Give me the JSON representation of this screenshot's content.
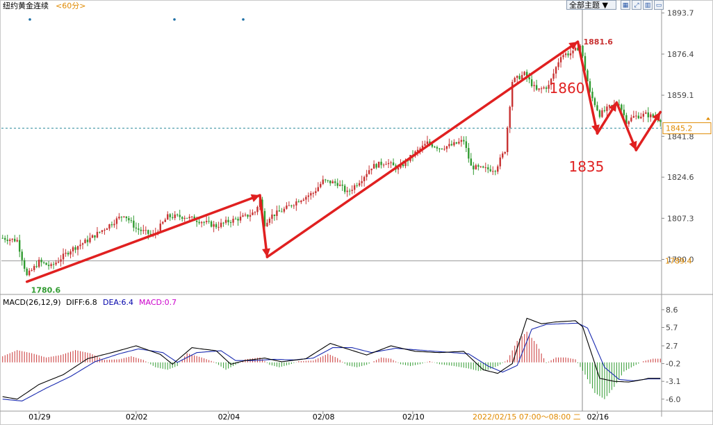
{
  "header": {
    "instrument": "纽约黄金连续",
    "period": "<60分>",
    "theme_button": "全部主题",
    "theme_arrow": "▼",
    "icon_buttons": [
      "grid-icon",
      "expand-icon",
      "bar-chart-icon",
      "window-icon"
    ]
  },
  "colors": {
    "up": "#c83232",
    "down": "#2f9a2f",
    "price_axis_text": "#444444",
    "dashed_line": "#2a8a9a",
    "arrow": "#e02020",
    "price_box": "#e08a00",
    "macd_label": "#cc00cc"
  },
  "chart_data": [
    {
      "type": "candlestick",
      "title": "纽约黄金连续",
      "period": "<60分>",
      "ylim": [
        1777,
        1898
      ],
      "y_ticks": [
        "1893.7",
        "1876.4",
        "1859.1",
        "1841.8",
        "1824.6",
        "1807.3",
        "1790.0"
      ],
      "current_price_label": "1845.2",
      "current_price": 1845.2,
      "ref_price_label": "1789.4",
      "ref_price": 1789.4,
      "high_label": "1881.6",
      "high": 1881.6,
      "low_label": "1780.6",
      "low": 1780.6,
      "x_labels": [
        "01/29",
        "02/02",
        "02/04",
        "02/08",
        "02/10",
        "02/16"
      ],
      "x_label_bar_index": [
        15,
        55,
        93,
        132,
        169,
        245
      ],
      "hover_time_label": "2022/02/15 07:00～08:00 二",
      "annotations": [
        {
          "text": "1860",
          "bar": 231,
          "price": 1860
        },
        {
          "text": "1835",
          "bar": 239,
          "price": 1827
        }
      ],
      "arrows": [
        {
          "from": [
            10,
            1780.6
          ],
          "to": [
            106,
            1817
          ]
        },
        {
          "from": [
            106,
            1817
          ],
          "to": [
            109,
            1791
          ]
        },
        {
          "from": [
            109,
            1791
          ],
          "to": [
            237,
            1881.6
          ]
        },
        {
          "from": [
            237,
            1881.6
          ],
          "to": [
            245,
            1843
          ]
        },
        {
          "from": [
            245,
            1843
          ],
          "to": [
            253,
            1856
          ]
        },
        {
          "from": [
            253,
            1856
          ],
          "to": [
            261,
            1836
          ]
        },
        {
          "from": [
            261,
            1836
          ],
          "to": [
            271,
            1852
          ]
        }
      ],
      "close_path": [
        [
          0,
          1799
        ],
        [
          6,
          1798
        ],
        [
          10,
          1783
        ],
        [
          15,
          1789
        ],
        [
          20,
          1787
        ],
        [
          28,
          1794
        ],
        [
          35,
          1798
        ],
        [
          42,
          1803
        ],
        [
          50,
          1809
        ],
        [
          55,
          1803
        ],
        [
          62,
          1800
        ],
        [
          68,
          1808
        ],
        [
          75,
          1808
        ],
        [
          82,
          1806
        ],
        [
          88,
          1804
        ],
        [
          93,
          1806
        ],
        [
          100,
          1808
        ],
        [
          104,
          1810
        ],
        [
          106,
          1815
        ],
        [
          108,
          1805
        ],
        [
          110,
          1808
        ],
        [
          116,
          1811
        ],
        [
          122,
          1815
        ],
        [
          128,
          1818
        ],
        [
          132,
          1823
        ],
        [
          138,
          1822
        ],
        [
          142,
          1818
        ],
        [
          148,
          1824
        ],
        [
          152,
          1829
        ],
        [
          158,
          1831
        ],
        [
          163,
          1828
        ],
        [
          169,
          1834
        ],
        [
          175,
          1839
        ],
        [
          180,
          1837
        ],
        [
          185,
          1838
        ],
        [
          190,
          1840
        ],
        [
          193,
          1829
        ],
        [
          198,
          1828
        ],
        [
          203,
          1828
        ],
        [
          207,
          1836
        ],
        [
          210,
          1865
        ],
        [
          215,
          1868
        ],
        [
          220,
          1861
        ],
        [
          225,
          1863
        ],
        [
          230,
          1876
        ],
        [
          235,
          1877
        ],
        [
          238,
          1880
        ],
        [
          242,
          1860
        ],
        [
          246,
          1851
        ],
        [
          250,
          1854
        ],
        [
          254,
          1856
        ],
        [
          257,
          1848
        ],
        [
          260,
          1850
        ],
        [
          265,
          1851
        ],
        [
          271,
          1849
        ]
      ]
    },
    {
      "type": "bar",
      "title": "MACD(26,12,9)",
      "indicator": "MACD(26,12,9)",
      "legend": [
        {
          "label": "DIFF:6.8",
          "value": 6.8
        },
        {
          "label": "DEA:6.4",
          "value": 6.4
        },
        {
          "label": "MACD:0.7",
          "value": 0.7
        }
      ],
      "ylim": [
        -7.5,
        9.5
      ],
      "y_ticks": [
        "8.6",
        "5.7",
        "2.7",
        "-0.2",
        "-3.1",
        "-6.0"
      ],
      "diff_path": [
        [
          0,
          -5.6
        ],
        [
          6,
          -6.0
        ],
        [
          15,
          -3.6
        ],
        [
          25,
          -2.0
        ],
        [
          35,
          0.6
        ],
        [
          45,
          1.6
        ],
        [
          55,
          2.7
        ],
        [
          65,
          1.3
        ],
        [
          70,
          -0.3
        ],
        [
          78,
          2.4
        ],
        [
          88,
          1.9
        ],
        [
          94,
          -0.3
        ],
        [
          100,
          0.3
        ],
        [
          108,
          0.7
        ],
        [
          115,
          0.1
        ],
        [
          125,
          0.6
        ],
        [
          135,
          3.1
        ],
        [
          142,
          2.2
        ],
        [
          150,
          1.2
        ],
        [
          160,
          2.7
        ],
        [
          170,
          1.8
        ],
        [
          180,
          1.6
        ],
        [
          190,
          1.8
        ],
        [
          198,
          -1.2
        ],
        [
          204,
          -1.8
        ],
        [
          210,
          -0.2
        ],
        [
          216,
          7.2
        ],
        [
          222,
          6.3
        ],
        [
          228,
          6.6
        ],
        [
          236,
          6.8
        ],
        [
          239,
          5.8
        ],
        [
          246,
          -2.6
        ],
        [
          252,
          -3.1
        ],
        [
          258,
          -3.2
        ],
        [
          264,
          -2.8
        ],
        [
          266,
          -2.6
        ]
      ],
      "dea_path": [
        [
          0,
          -6.0
        ],
        [
          8,
          -6.3
        ],
        [
          18,
          -4.2
        ],
        [
          28,
          -2.3
        ],
        [
          38,
          0.1
        ],
        [
          48,
          1.4
        ],
        [
          56,
          2.2
        ],
        [
          66,
          1.6
        ],
        [
          72,
          0.0
        ],
        [
          80,
          1.6
        ],
        [
          90,
          1.9
        ],
        [
          96,
          0.3
        ],
        [
          104,
          0.3
        ],
        [
          112,
          0.5
        ],
        [
          120,
          0.4
        ],
        [
          128,
          0.7
        ],
        [
          136,
          2.4
        ],
        [
          144,
          2.4
        ],
        [
          152,
          1.6
        ],
        [
          162,
          2.3
        ],
        [
          172,
          2.0
        ],
        [
          182,
          1.7
        ],
        [
          192,
          1.4
        ],
        [
          200,
          -0.6
        ],
        [
          206,
          -1.6
        ],
        [
          212,
          -0.5
        ],
        [
          218,
          5.4
        ],
        [
          224,
          6.2
        ],
        [
          230,
          6.3
        ],
        [
          237,
          6.4
        ],
        [
          241,
          5.6
        ],
        [
          248,
          -0.8
        ],
        [
          254,
          -2.8
        ],
        [
          260,
          -3.0
        ],
        [
          266,
          -2.7
        ]
      ],
      "hist_path": [
        [
          0,
          1.0
        ],
        [
          6,
          2.0
        ],
        [
          12,
          1.5
        ],
        [
          18,
          0.8
        ],
        [
          24,
          1.2
        ],
        [
          30,
          2.0
        ],
        [
          36,
          1.5
        ],
        [
          42,
          0.4
        ],
        [
          48,
          0.5
        ],
        [
          53,
          1.0
        ],
        [
          58,
          0.4
        ],
        [
          63,
          -0.8
        ],
        [
          68,
          -1.2
        ],
        [
          72,
          -0.6
        ],
        [
          76,
          1.5
        ],
        [
          82,
          0.8
        ],
        [
          87,
          0.1
        ],
        [
          92,
          -1.2
        ],
        [
          96,
          -0.4
        ],
        [
          100,
          0.5
        ],
        [
          106,
          0.8
        ],
        [
          110,
          -0.4
        ],
        [
          114,
          -0.8
        ],
        [
          118,
          -0.4
        ],
        [
          122,
          0.2
        ],
        [
          128,
          0.3
        ],
        [
          134,
          1.4
        ],
        [
          138,
          0.7
        ],
        [
          142,
          -0.5
        ],
        [
          146,
          -0.8
        ],
        [
          150,
          -0.4
        ],
        [
          156,
          0.8
        ],
        [
          160,
          0.6
        ],
        [
          164,
          -0.3
        ],
        [
          168,
          -0.6
        ],
        [
          172,
          -0.3
        ],
        [
          176,
          0.2
        ],
        [
          180,
          -0.3
        ],
        [
          186,
          -0.6
        ],
        [
          192,
          -1.0
        ],
        [
          196,
          -1.4
        ],
        [
          200,
          -1.2
        ],
        [
          204,
          -0.6
        ],
        [
          208,
          0.4
        ],
        [
          212,
          3.5
        ],
        [
          216,
          5.0
        ],
        [
          220,
          3.0
        ],
        [
          224,
          -0.1
        ],
        [
          228,
          0.8
        ],
        [
          232,
          0.8
        ],
        [
          236,
          0.5
        ],
        [
          240,
          -2.0
        ],
        [
          244,
          -5.0
        ],
        [
          248,
          -6.0
        ],
        [
          252,
          -4.0
        ],
        [
          256,
          -1.5
        ],
        [
          260,
          -0.6
        ],
        [
          264,
          0.2
        ],
        [
          268,
          0.6
        ]
      ]
    }
  ]
}
